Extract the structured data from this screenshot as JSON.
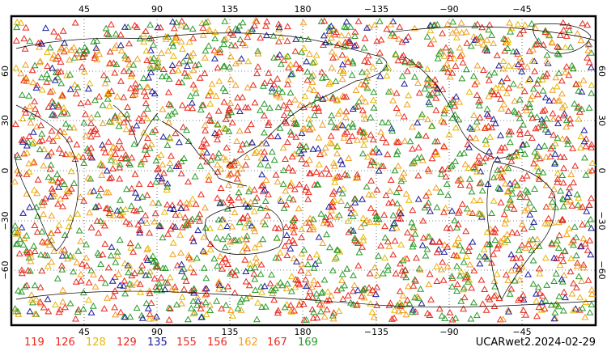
{
  "map": {
    "top_lon_ticks": [
      "45",
      "90",
      "135",
      "180",
      "−135",
      "−90",
      "−45"
    ],
    "bottom_lon_ticks": [
      "45",
      "90",
      "135",
      "180",
      "−135",
      "−90",
      "−45"
    ],
    "left_lat_ticks": [
      "60",
      "30",
      "0",
      "−30",
      "−60"
    ],
    "right_lat_ticks": [
      "60",
      "30",
      "0",
      "−30",
      "−60"
    ],
    "marker": "triangle-icon"
  },
  "legend": [
    {
      "label": "119",
      "color": "#e8291c"
    },
    {
      "label": "126",
      "color": "#e8291c"
    },
    {
      "label": "128",
      "color": "#e8b800"
    },
    {
      "label": "129",
      "color": "#e8291c"
    },
    {
      "label": "135",
      "color": "#1c1c9a"
    },
    {
      "label": "155",
      "color": "#e8291c"
    },
    {
      "label": "156",
      "color": "#e8291c"
    },
    {
      "label": "162",
      "color": "#f0a020"
    },
    {
      "label": "167",
      "color": "#e8291c"
    },
    {
      "label": "169",
      "color": "#2a9a2a"
    }
  ],
  "date_label": "UCARwet2.2024-02-29",
  "colors": {
    "red": "#e8291c",
    "orange": "#f0a020",
    "yellow": "#e8b800",
    "green": "#2a9a2a",
    "blue": "#1c1c9a",
    "coast": "#000000"
  }
}
